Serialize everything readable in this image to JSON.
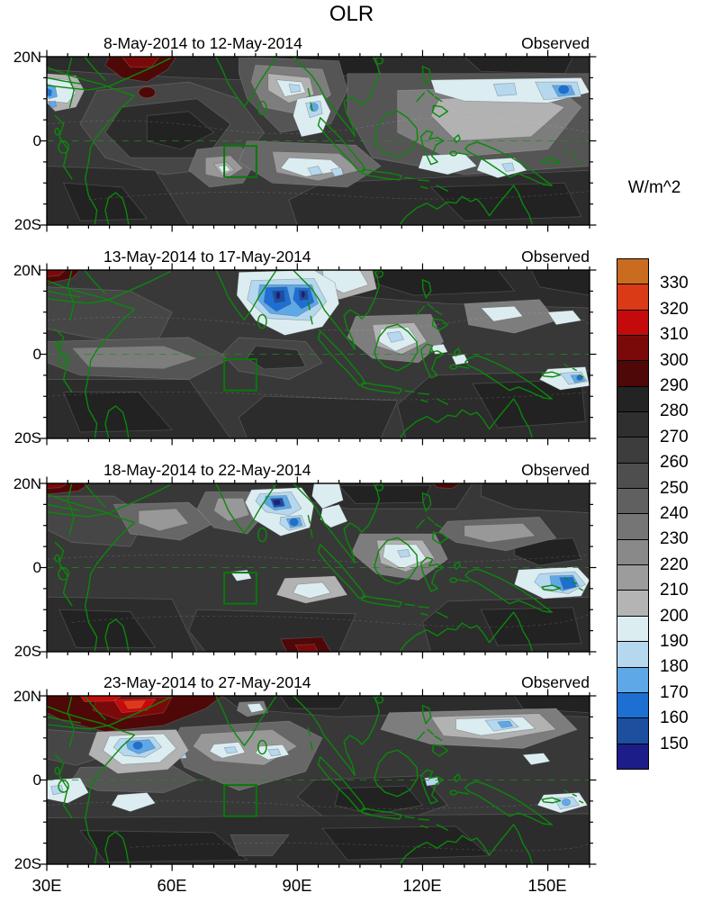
{
  "title": "OLR",
  "panels": [
    {
      "date_range": "8-May-2014 to 12-May-2014",
      "model_label": "Observed"
    },
    {
      "date_range": "13-May-2014 to 17-May-2014",
      "model_label": "Observed"
    },
    {
      "date_range": "18-May-2014 to 22-May-2014",
      "model_label": "Observed"
    },
    {
      "date_range": "23-May-2014 to 27-May-2014",
      "model_label": "Observed"
    }
  ],
  "axes": {
    "lat_labels": [
      "20N",
      "0",
      "20S"
    ],
    "lon_labels": [
      "30E",
      "60E",
      "90E",
      "120E",
      "150E"
    ],
    "lon_range_deg_east": [
      30,
      160
    ],
    "lat_range_deg_north": [
      -20,
      20
    ],
    "ticks": {
      "lon_step": 5,
      "lon_major_every": 30,
      "lat_step": 5,
      "lat_major_every": 20
    }
  },
  "colorbar": {
    "title": "W/m^2",
    "labels": [
      "330",
      "320",
      "310",
      "300",
      "290",
      "280",
      "270",
      "260",
      "250",
      "240",
      "230",
      "220",
      "210",
      "200",
      "190",
      "180",
      "170",
      "160",
      "150"
    ],
    "colors": [
      "#c96c1f",
      "#da3b16",
      "#c40a0a",
      "#7a0a0a",
      "#4e0808",
      "#232323",
      "#2f2f2f",
      "#3d3d3d",
      "#4e4e4e",
      "#606060",
      "#757575",
      "#898989",
      "#9c9c9c",
      "#b4b4b4",
      "#dcedf2",
      "#b5d8ee",
      "#5fa8e8",
      "#1e6fd2",
      "#1d4f9f",
      "#1d1d8a"
    ]
  },
  "map_colors": {
    "coastline": "#0a880a",
    "target_box": "#077a07",
    "equator_line": "#1f8c1f"
  },
  "chart_data": {
    "type": "heatmap",
    "subtype": "filled-contour longitude-latitude maps, 4 stacked time panels",
    "variable": "OLR",
    "units": "W/m^2",
    "title": "OLR",
    "panel_labels": [
      "8-May-2014 to 12-May-2014",
      "13-May-2014 to 17-May-2014",
      "18-May-2014 to 22-May-2014",
      "23-May-2014 to 27-May-2014"
    ],
    "panel_source_label": "Observed",
    "lon_range": [
      30,
      160
    ],
    "lat_range": [
      -20,
      20
    ],
    "contour_levels": [
      150,
      160,
      170,
      180,
      190,
      200,
      210,
      220,
      230,
      240,
      250,
      260,
      270,
      280,
      290,
      300,
      310,
      320,
      330
    ],
    "contour_interval": 10,
    "colormap_note": "blues below 200, grays 200-290 darkening upward, dark reds/orange above 290",
    "overlays": {
      "coastlines": "green",
      "equator": "green dashed line at 0 latitude",
      "target_box": "green rectangle approx 72E-80E, 0 to 8S in every panel"
    },
    "features_by_panel": [
      {
        "low_olr_below_200": [
          "band 115E-160E near 3-8N with minima <180 near 150-157E",
          "patch 85-100E near 3-8S",
          "spot at west edge 30-33E, 2N-8N (<170)"
        ],
        "high_olr_above_290": [
          "48-75E along 20N (290-310)"
        ]
      },
      {
        "low_olr_below_200": [
          "strong center 82-95E, 2-12N with cores <150",
          "patch near Borneo 108-119E",
          "spot 152-158E near 3S (<170)"
        ],
        "high_olr_above_290": [
          "northwest corner 30-37E at 20N"
        ]
      },
      {
        "low_olr_below_200": [
          "center 85-92E, 8-14N with core <150",
          "second core 88-92E, 4-8N (<170)",
          "blue patch 145-158E, 0-7S (<170)",
          "pale patch near Borneo"
        ],
        "high_olr_above_290": [
          "northwest corner at 20N",
          "small spot 85-98E near 17-20S (300-310)"
        ]
      },
      {
        "low_olr_below_200": [
          "spot 48-56E, 5-9N (<170)",
          "scattered pale patches 65-95E near equator",
          "band 128-155E, 2-8N",
          "small spot 149-158E near 5S"
        ],
        "high_olr_above_290": [
          "large area 30-72E, 12-20N with core >320 near 48-54E"
        ]
      }
    ]
  }
}
